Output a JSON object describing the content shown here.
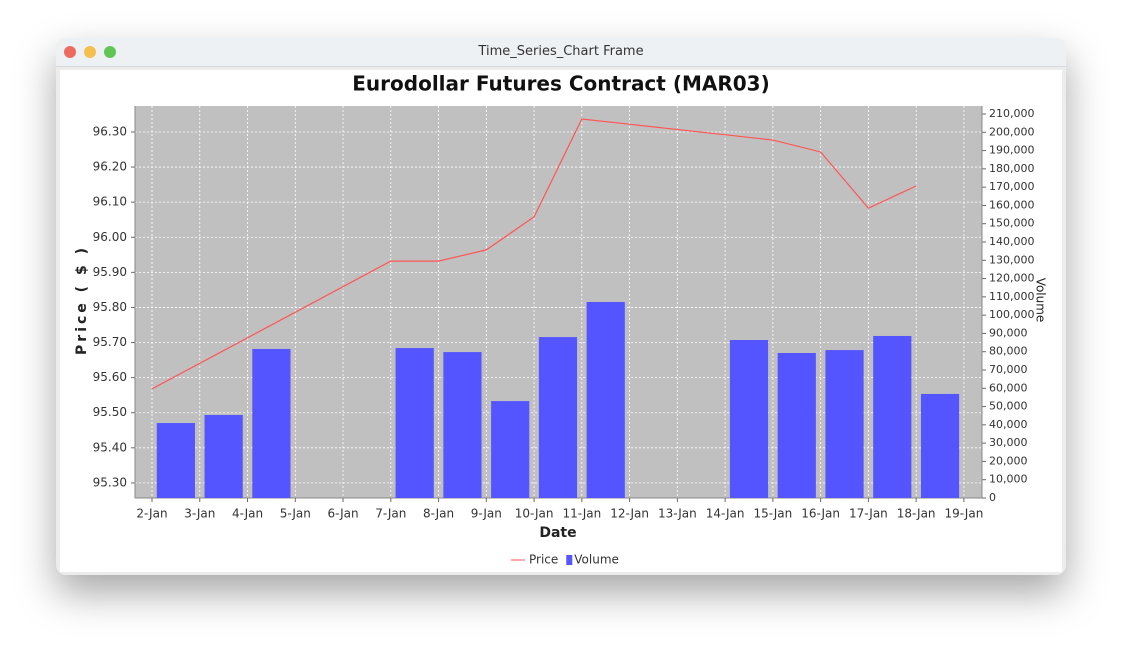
{
  "window_title": "Time_Series_Chart Frame",
  "chart_data": {
    "type": "bar-line",
    "title": "Eurodollar Futures Contract (MAR03)",
    "x_label": "Date",
    "y_label": "Price ( $ )",
    "y2_label": "Volume",
    "categories": [
      "2-Jan",
      "3-Jan",
      "4-Jan",
      "5-Jan",
      "6-Jan",
      "7-Jan",
      "8-Jan",
      "9-Jan",
      "10-Jan",
      "11-Jan",
      "12-Jan",
      "13-Jan",
      "14-Jan",
      "15-Jan",
      "16-Jan",
      "17-Jan",
      "18-Jan",
      "19-Jan"
    ],
    "series": [
      {
        "name": "Price",
        "type": "line",
        "color": "#ff5555",
        "x": [
          "2-Jan",
          "7-Jan",
          "8-Jan",
          "9-Jan",
          "10-Jan",
          "11-Jan",
          "15-Jan",
          "16-Jan",
          "17-Jan",
          "18-Jan"
        ],
        "values": [
          95.568,
          95.932,
          95.932,
          95.964,
          96.058,
          96.337,
          96.277,
          96.243,
          96.083,
          96.146
        ]
      },
      {
        "name": "Volume",
        "type": "bar",
        "axis": "y2",
        "color": "#5555ff",
        "x": [
          "2-Jan",
          "3-Jan",
          "4-Jan",
          "7-Jan",
          "8-Jan",
          "9-Jan",
          "10-Jan",
          "11-Jan",
          "14-Jan",
          "15-Jan",
          "16-Jan",
          "17-Jan",
          "18-Jan"
        ],
        "values": [
          41000,
          45400,
          81500,
          82000,
          79800,
          53000,
          88000,
          107200,
          86400,
          79300,
          80900,
          88600,
          56900
        ]
      }
    ],
    "ylim": [
      95.257,
      96.374
    ],
    "yticks": [
      {
        "value": 95.3,
        "label": "95.30"
      },
      {
        "value": 95.4,
        "label": "95.40"
      },
      {
        "value": 95.5,
        "label": "95.50"
      },
      {
        "value": 95.6,
        "label": "95.60"
      },
      {
        "value": 95.7,
        "label": "95.70"
      },
      {
        "value": 95.8,
        "label": "95.80"
      },
      {
        "value": 95.9,
        "label": "95.90"
      },
      {
        "value": 96.0,
        "label": "96.00"
      },
      {
        "value": 96.1,
        "label": "96.10"
      },
      {
        "value": 96.2,
        "label": "96.20"
      },
      {
        "value": 96.3,
        "label": "96.30"
      }
    ],
    "y2lim": [
      0,
      214375
    ],
    "y2ticks": [
      0,
      {
        "value": 10000,
        "label": "10,000"
      },
      {
        "value": 20000,
        "label": "20,000"
      },
      {
        "value": 30000,
        "label": "30,000"
      },
      {
        "value": 40000,
        "label": "40,000"
      },
      {
        "value": 50000,
        "label": "50,000"
      },
      {
        "value": 60000,
        "label": "60,000"
      },
      {
        "value": 70000,
        "label": "70,000"
      },
      {
        "value": 80000,
        "label": "80,000"
      },
      {
        "value": 90000,
        "label": "90,000"
      },
      {
        "value": 100000,
        "label": "100,000"
      },
      {
        "value": 110000,
        "label": "110,000"
      },
      {
        "value": 120000,
        "label": "120,000"
      },
      {
        "value": 130000,
        "label": "130,000"
      },
      {
        "value": 140000,
        "label": "140,000"
      },
      {
        "value": 150000,
        "label": "150,000"
      },
      {
        "value": 160000,
        "label": "160,000"
      },
      {
        "value": 170000,
        "label": "170,000"
      },
      {
        "value": 180000,
        "label": "180,000"
      },
      {
        "value": 190000,
        "label": "190,000"
      },
      {
        "value": 200000,
        "label": "200,000"
      },
      {
        "value": 210000,
        "label": "210,000"
      }
    ],
    "grid": true,
    "legend": "bottom",
    "plot_background": "#c0c0c0"
  }
}
